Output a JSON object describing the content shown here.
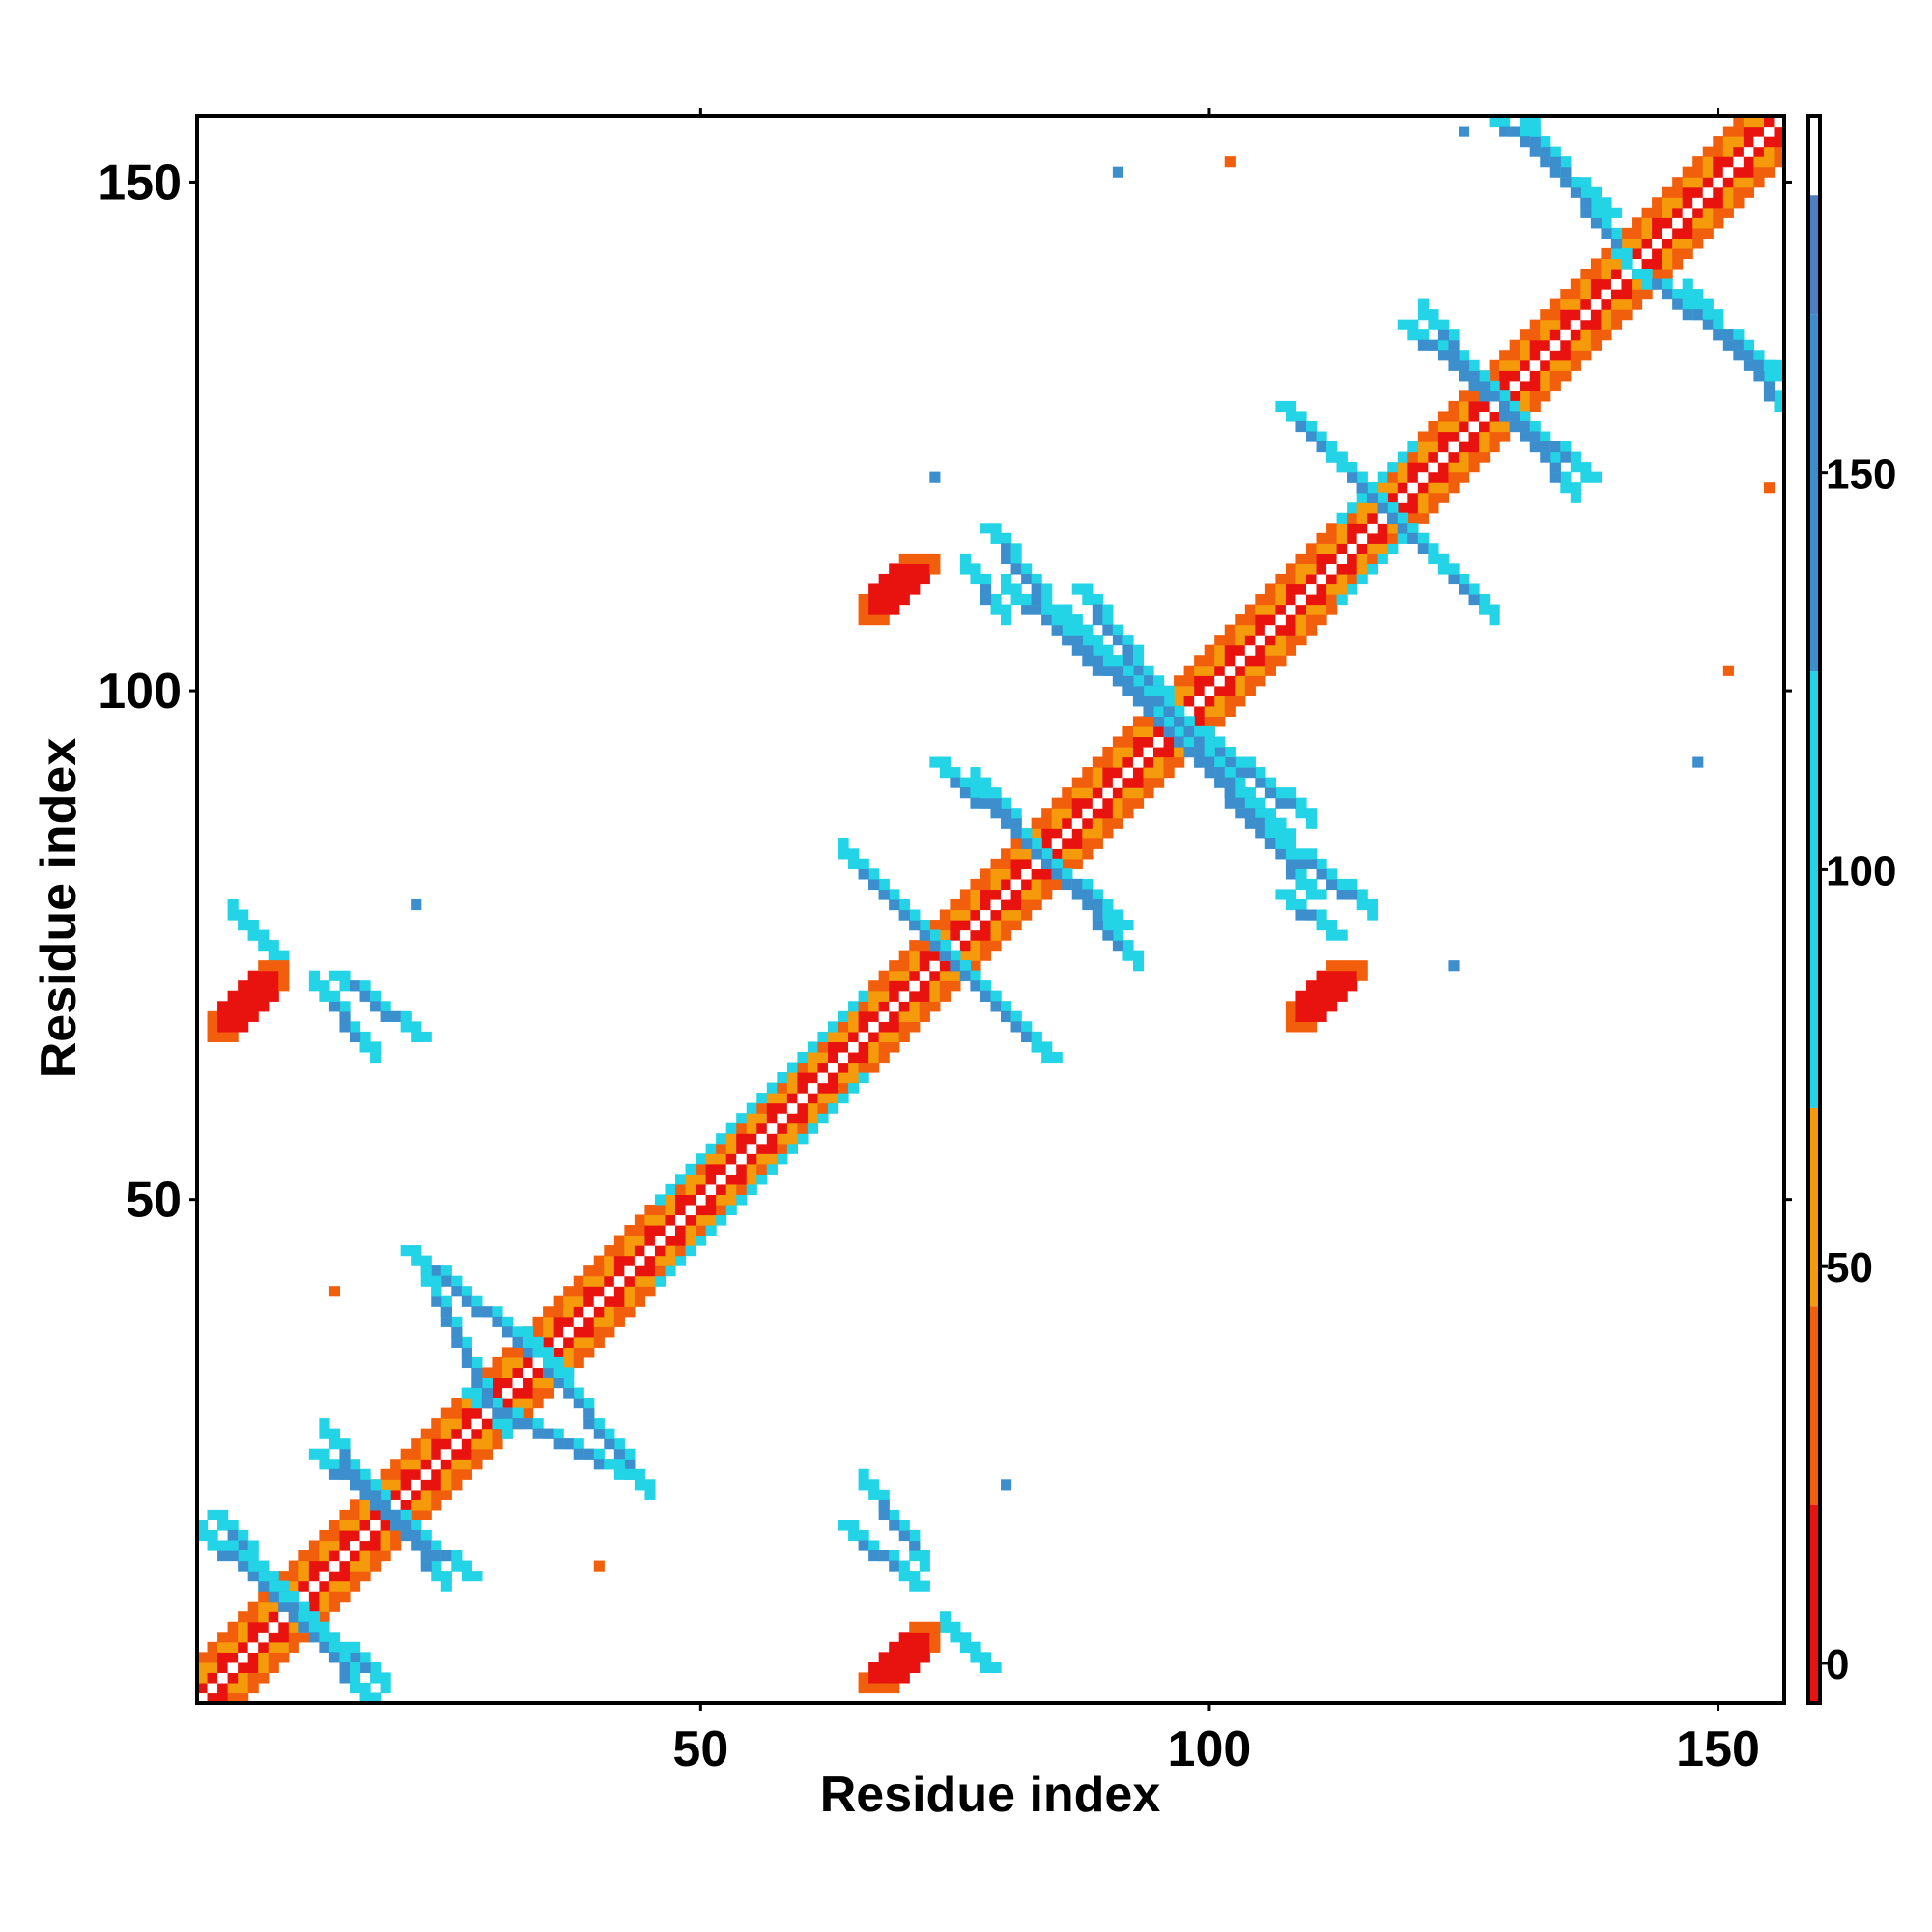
{
  "chart_data": {
    "type": "heatmap",
    "title": "",
    "xlabel": "Residue index",
    "ylabel": "Residue index",
    "xlim": [
      1,
      156
    ],
    "ylim": [
      1,
      156
    ],
    "xticks": [
      50,
      100,
      150
    ],
    "yticks": [
      50,
      100,
      150
    ],
    "colorbar": {
      "ticks": [
        0,
        50,
        100,
        150
      ],
      "range": [
        -5,
        195
      ],
      "bands": [
        {
          "from": -5,
          "to": 20,
          "color": "#e8120f"
        },
        {
          "from": 20,
          "to": 45,
          "color": "#f25f0c"
        },
        {
          "from": 45,
          "to": 70,
          "color": "#f59a0b"
        },
        {
          "from": 70,
          "to": 125,
          "color": "#22d4e6"
        },
        {
          "from": 125,
          "to": 170,
          "color": "#3c8fcc"
        },
        {
          "from": 170,
          "to": 185,
          "color": "#4f7fc2"
        },
        {
          "from": 185,
          "to": 195,
          "color": "#ffffff"
        }
      ]
    },
    "segments": [
      {
        "value": 160,
        "from": [
          2,
          19
        ],
        "to": [
          17,
          1
        ]
      },
      {
        "value": 160,
        "from": [
          12,
          25
        ],
        "to": [
          27,
          13
        ]
      },
      {
        "value": 160,
        "from": [
          21,
          45
        ],
        "to": [
          36,
          33
        ]
      },
      {
        "value": 160,
        "from": [
          27,
          31
        ],
        "to": [
          42,
          23
        ]
      },
      {
        "value": 160,
        "from": [
          65,
          83
        ],
        "to": [
          84,
          64
        ]
      },
      {
        "value": 160,
        "from": [
          73,
          93
        ],
        "to": [
          91,
          77
        ]
      },
      {
        "value": 160,
        "from": [
          84,
          107
        ],
        "to": [
          107,
          86
        ]
      },
      {
        "value": 160,
        "from": [
          87,
          110
        ],
        "to": [
          110,
          80
        ]
      },
      {
        "value": 160,
        "from": [
          107,
          128
        ],
        "to": [
          123,
          112
        ]
      },
      {
        "value": 160,
        "from": [
          119,
          136
        ],
        "to": [
          137,
          121
        ]
      },
      {
        "value": 160,
        "from": [
          127,
          157
        ],
        "to": [
          139,
          147
        ]
      },
      {
        "value": 160,
        "from": [
          142,
          141
        ],
        "to": [
          156,
          131
        ]
      },
      {
        "value": 160,
        "from": [
          5,
          77
        ],
        "to": [
          8,
          74
        ]
      },
      {
        "value": 160,
        "from": [
          14,
          72
        ],
        "to": [
          22,
          66
        ]
      },
      {
        "value": 160,
        "from": [
          64,
          18
        ],
        "to": [
          71,
          12
        ]
      },
      {
        "value": 160,
        "from": [
          78,
          116
        ],
        "to": [
          85,
          107
        ]
      },
      {
        "value": 160,
        "from": [
          107,
          80
        ],
        "to": [
          112,
          76
        ]
      },
      {
        "value": 160,
        "from": [
          76,
          6
        ],
        "to": [
          78,
          4
        ]
      }
    ],
    "blobs": [
      {
        "value": 5,
        "center": [
          6,
          70
        ],
        "from": [
          2,
          66
        ],
        "to": [
          9,
          73
        ]
      },
      {
        "value": 5,
        "center": [
          69,
          110
        ],
        "from": [
          66,
          107
        ],
        "to": [
          73,
          113
        ]
      },
      {
        "value": 5,
        "center": [
          70,
          5
        ],
        "from": [
          66,
          2
        ],
        "to": [
          73,
          8
        ]
      },
      {
        "value": 5,
        "center": [
          111,
          70
        ],
        "from": [
          108,
          67
        ],
        "to": [
          115,
          73
        ]
      }
    ],
    "points": [
      {
        "x": 91,
        "y": 151,
        "value": 160
      },
      {
        "x": 102,
        "y": 152,
        "value": 40
      },
      {
        "x": 73,
        "y": 121,
        "value": 160
      },
      {
        "x": 22,
        "y": 79,
        "value": 160
      },
      {
        "x": 80,
        "y": 22,
        "value": 160
      },
      {
        "x": 40,
        "y": 14,
        "value": 40
      },
      {
        "x": 14,
        "y": 41,
        "value": 40
      },
      {
        "x": 148,
        "y": 93,
        "value": 160
      },
      {
        "x": 124,
        "y": 73,
        "value": 160
      },
      {
        "x": 151,
        "y": 102,
        "value": 40
      },
      {
        "x": 155,
        "y": 120,
        "value": 40
      },
      {
        "x": 125,
        "y": 155,
        "value": 160
      }
    ]
  }
}
